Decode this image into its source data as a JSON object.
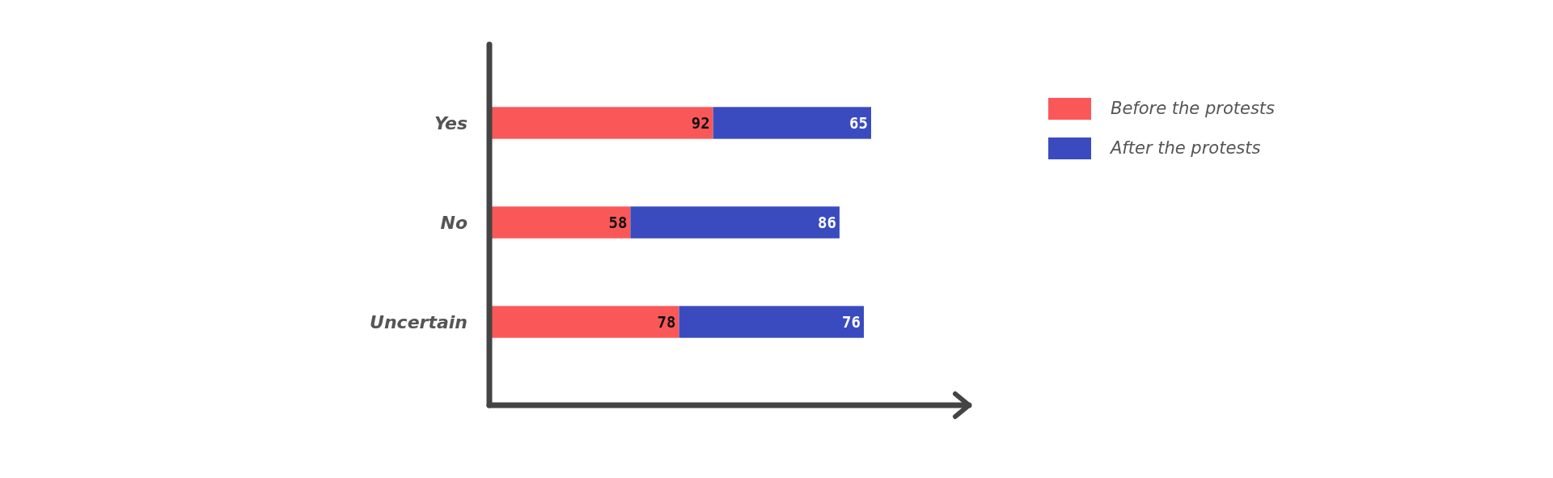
{
  "chart_data": {
    "type": "bar",
    "orientation": "horizontal",
    "stacked": true,
    "data_labels": true,
    "legend": "top right",
    "categories": [
      "Yes",
      "No",
      "Uncertain"
    ],
    "series": [
      {
        "name": "Before the protests",
        "color": "#fa5858",
        "values": [
          92,
          58,
          78
        ]
      },
      {
        "name": "After the protests",
        "color": "#3a4bc0",
        "values": [
          65,
          86,
          76
        ]
      }
    ]
  }
}
